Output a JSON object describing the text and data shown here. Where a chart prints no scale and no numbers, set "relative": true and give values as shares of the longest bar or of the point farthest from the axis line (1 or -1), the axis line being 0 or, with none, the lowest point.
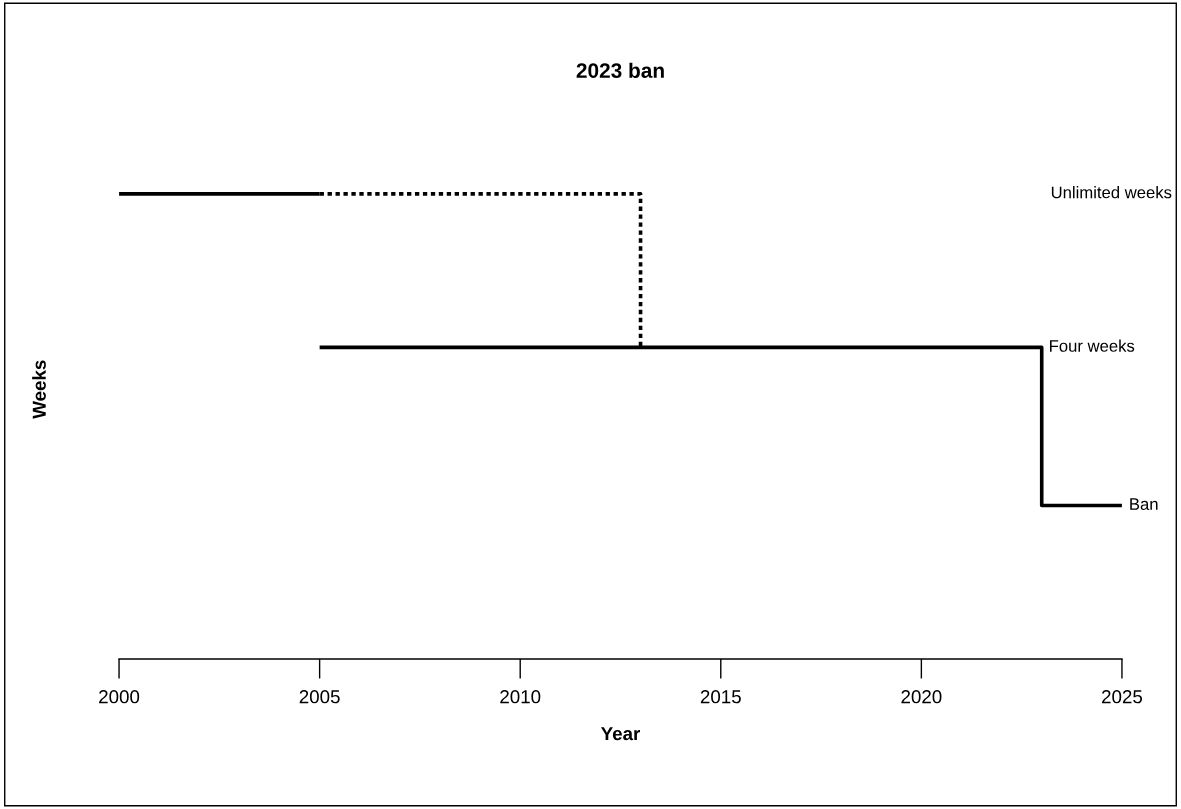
{
  "chart_data": {
    "type": "line",
    "title": "2023 ban",
    "xlabel": "Year",
    "ylabel": "Weeks",
    "relative": true,
    "xlim": [
      2000,
      2025
    ],
    "xticks": [
      2000,
      2005,
      2010,
      2015,
      2020,
      2025
    ],
    "grid": false,
    "legend": false,
    "marker": "none",
    "series": [
      {
        "color": "#000000",
        "line_style": "solid",
        "x": [
          2000,
          2005
        ],
        "values": [
          1,
          1
        ]
      },
      {
        "color": "#000000",
        "line_style": "dashed",
        "x": [
          2005,
          2013,
          2013
        ],
        "values": [
          1,
          1,
          0.67
        ]
      },
      {
        "color": "#000000",
        "line_style": "solid",
        "x": [
          2005,
          2023,
          2023,
          2025
        ],
        "values": [
          0.67,
          0.67,
          0.33,
          0.33
        ]
      }
    ],
    "annotations": [
      "Unlimited weeks",
      {
        "text": "Four weeks",
        "x": 2023,
        "y": 0.67
      },
      {
        "text": "Ban",
        "x": 2025,
        "y": 0.33
      }
    ]
  }
}
